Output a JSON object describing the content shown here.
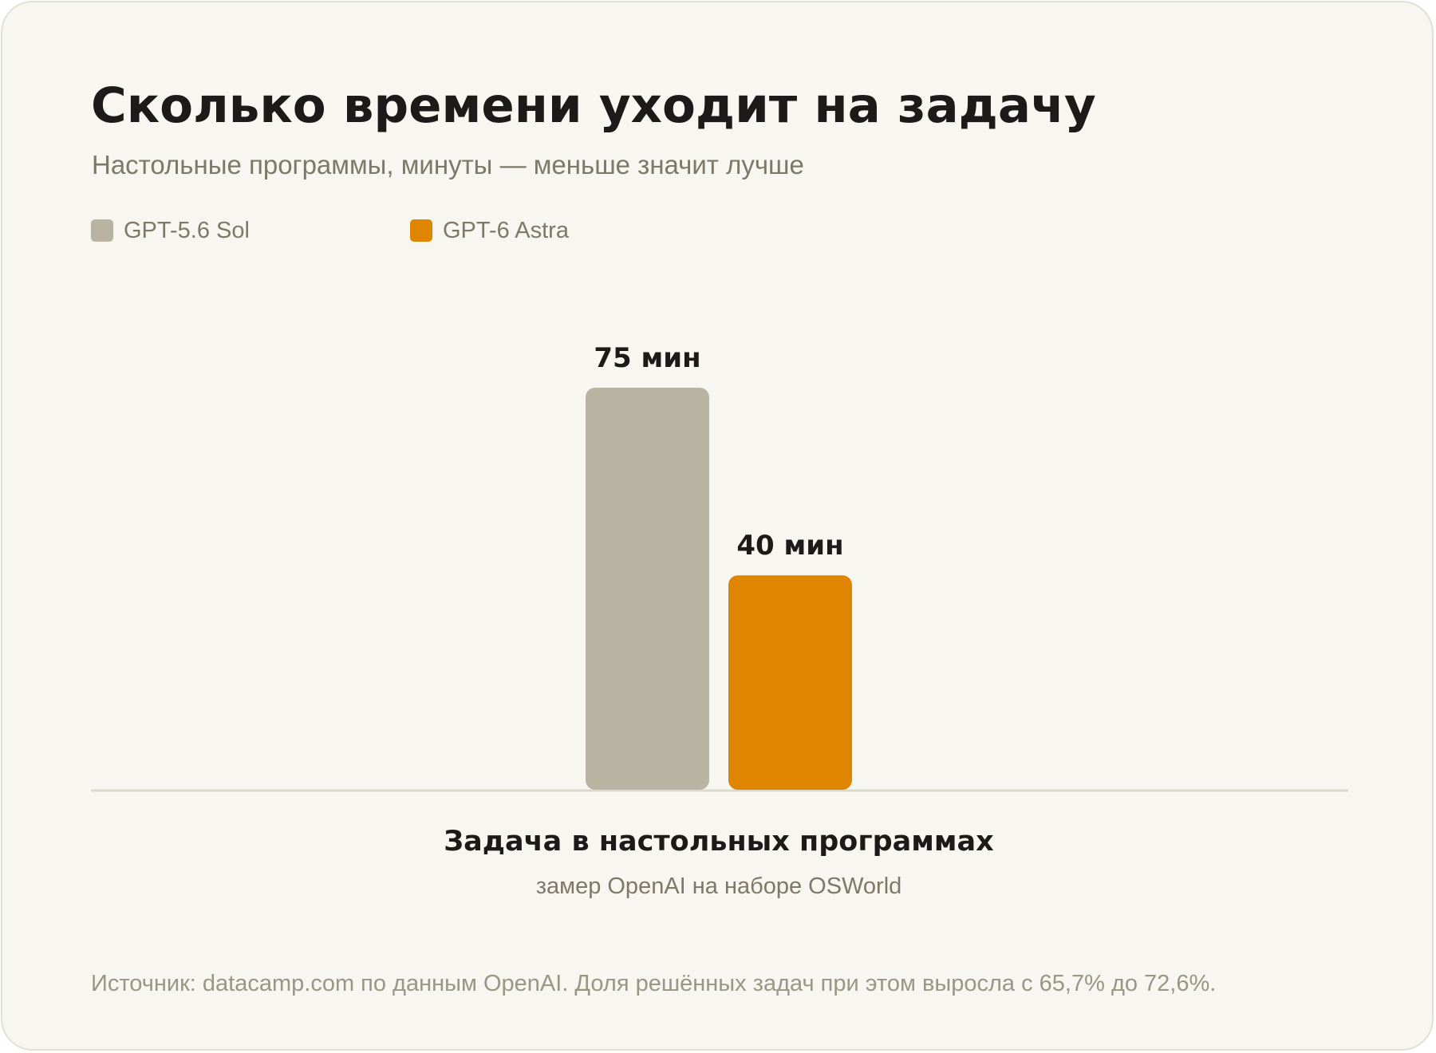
{
  "header": {
    "title": "Сколько времени уходит на задачу",
    "subtitle": "Настольные программы, минуты — меньше значит лучше"
  },
  "legend": [
    {
      "label": "GPT-5.6 Sol",
      "color": "#b9b3a2"
    },
    {
      "label": "GPT-6 Astra",
      "color": "#e08500"
    }
  ],
  "chart_data": {
    "type": "bar",
    "title": "Сколько времени уходит на задачу",
    "subtitle": "Настольные программы, минуты — меньше значит лучше",
    "categories": [
      "Задача в настольных программах"
    ],
    "category_note": "замер OpenAI на наборе OSWorld",
    "unit": "мин",
    "series": [
      {
        "name": "GPT-5.6 Sol",
        "values": [
          75
        ],
        "color": "#b9b3a2",
        "data_label": "75 мин"
      },
      {
        "name": "GPT-6 Astra",
        "values": [
          40
        ],
        "color": "#e08500",
        "data_label": "40 мин"
      }
    ],
    "ylim": [
      0,
      75
    ],
    "grid": false,
    "legend_position": "top-left"
  },
  "footer": {
    "source": "Источник: datacamp.com по данным OpenAI. Доля решённых задач при этом выросла с 65,7% до 72,6%."
  }
}
